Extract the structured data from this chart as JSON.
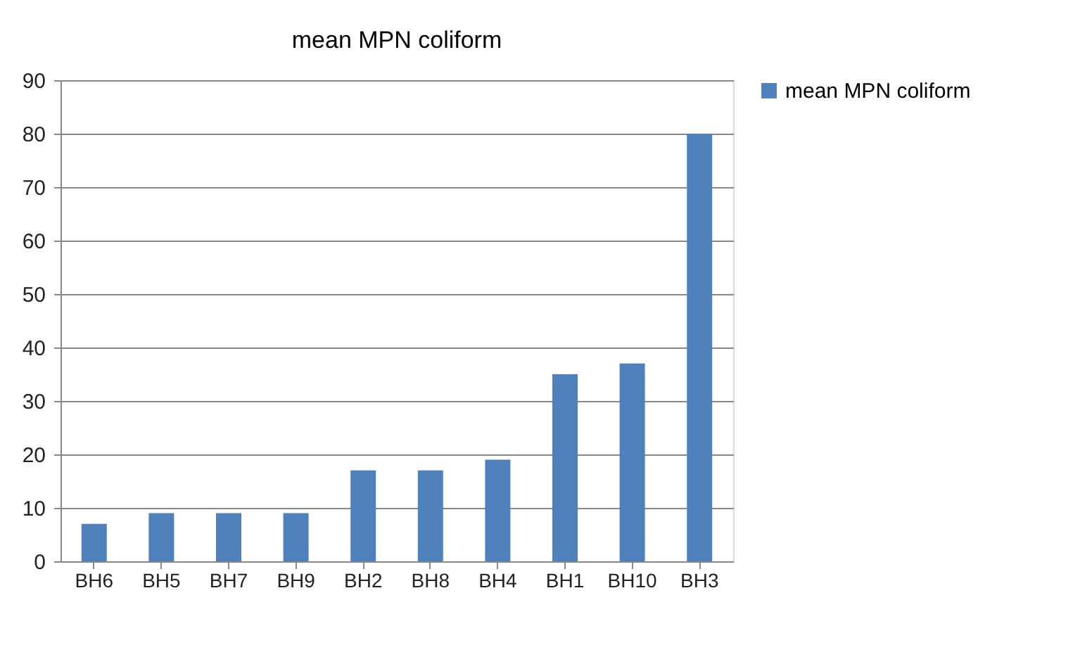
{
  "chart_data": {
    "type": "bar",
    "title": "mean MPN coliform",
    "categories": [
      "BH6",
      "BH5",
      "BH7",
      "BH9",
      "BH2",
      "BH8",
      "BH4",
      "BH1",
      "BH10",
      "BH3"
    ],
    "series": [
      {
        "name": "mean MPN coliform",
        "color": "#4f81bd",
        "values": [
          7,
          9,
          9,
          9,
          17,
          17,
          19,
          35,
          37,
          80
        ]
      }
    ],
    "ylim": [
      0,
      90
    ],
    "yticks": [
      0,
      10,
      20,
      30,
      40,
      50,
      60,
      70,
      80,
      90
    ],
    "grid": "y",
    "legend": "right"
  }
}
